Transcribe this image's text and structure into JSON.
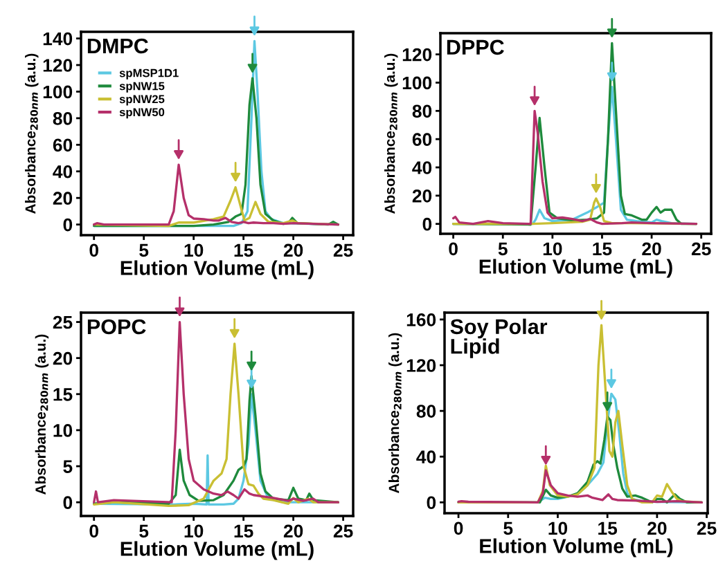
{
  "chart_data": [
    {
      "type": "line",
      "title": "DMPC",
      "xlabel": "Elution Volume (mL)",
      "ylabel": "Absorbance$_{280nm}$ (a.u.)",
      "xlim": [
        -1.3,
        26
      ],
      "ylim": [
        -8,
        145
      ],
      "xticks": [
        0,
        5,
        10,
        15,
        20,
        25
      ],
      "yticks": [
        0,
        20,
        40,
        60,
        80,
        100,
        120,
        140
      ],
      "grid": false,
      "legend": "top left",
      "marker": "none",
      "line_style": "solid",
      "series": [
        {
          "name": "spMSP1D1",
          "color": "#5cc8e2",
          "x": [
            0,
            8,
            14,
            14.8,
            15.4,
            15.8,
            16.1,
            16.4,
            16.8,
            17.2,
            17.8,
            19,
            24.5
          ],
          "values": [
            -1,
            -1,
            -1,
            1,
            10,
            80,
            138,
            100,
            40,
            10,
            4,
            1,
            0
          ]
        },
        {
          "name": "spNW15",
          "color": "#1e8a3c",
          "x": [
            0,
            7.5,
            10,
            12,
            13.5,
            14.2,
            14.8,
            15.2,
            15.6,
            15.9,
            16.3,
            16.7,
            17.2,
            18,
            19,
            19.6,
            19.9,
            20.4,
            23.5,
            24,
            24.5
          ],
          "values": [
            -1,
            -1,
            -1,
            0,
            2,
            6,
            8,
            30,
            90,
            110,
            80,
            30,
            8,
            3,
            0.5,
            2,
            5,
            1,
            0,
            2,
            0
          ]
        },
        {
          "name": "spNW25",
          "color": "#c9bf33",
          "x": [
            0,
            7.5,
            8.5,
            10,
            12,
            13,
            13.7,
            14.2,
            14.7,
            15.1,
            15.6,
            16.2,
            16.7,
            17.5,
            19,
            19.9,
            20.5,
            24.5
          ],
          "values": [
            0,
            -1,
            1.5,
            1.5,
            4,
            6,
            18,
            28,
            14,
            3,
            5,
            17,
            8,
            2,
            1,
            3,
            1,
            0
          ]
        },
        {
          "name": "spNW50",
          "color": "#b5306a",
          "x": [
            0,
            0.3,
            1,
            7.5,
            8,
            8.5,
            9,
            9.5,
            10,
            11,
            12,
            12.5,
            13.2,
            13.8,
            14.5,
            15,
            15.5,
            16,
            17,
            18,
            19,
            20,
            22,
            24.5
          ],
          "values": [
            0,
            1,
            0,
            0,
            10,
            45,
            20,
            7,
            4.5,
            4,
            3,
            3,
            5,
            2,
            1,
            2,
            1,
            1.5,
            1,
            1,
            0.5,
            1,
            0.5,
            0
          ]
        }
      ]
    },
    {
      "type": "line",
      "title": "DPPC",
      "xlabel": "Elution Volume (mL)",
      "ylabel": "Absorbance$_{280nm}$ (a.u.)",
      "xlim": [
        -1.3,
        26
      ],
      "ylim": [
        -7,
        135
      ],
      "xticks": [
        0,
        5,
        10,
        15,
        20,
        25
      ],
      "yticks": [
        0,
        20,
        40,
        60,
        80,
        100,
        120
      ],
      "grid": false,
      "marker": "none",
      "line_style": "solid",
      "series": [
        {
          "color": "#5cc8e2",
          "x": [
            0,
            8,
            8.3,
            8.7,
            9.2,
            10,
            12,
            13.5,
            14.5,
            15.2,
            15.6,
            16,
            16.4,
            16.9,
            17.5,
            18.5,
            20,
            20.5,
            21,
            22,
            24.5
          ],
          "values": [
            0,
            0,
            3,
            10,
            4,
            2,
            3,
            8,
            12,
            15,
            60,
            97,
            60,
            10,
            3,
            2,
            1,
            3,
            2,
            0.5,
            0
          ]
        },
        {
          "color": "#1e8a3c",
          "x": [
            0,
            7.8,
            8.3,
            8.7,
            9.2,
            9.7,
            10.5,
            12,
            13.5,
            14.5,
            15.2,
            15.6,
            16,
            16.4,
            16.9,
            17.3,
            18,
            19,
            19.5,
            20,
            20.5,
            20.9,
            21.3,
            22,
            22.5,
            23,
            24.5
          ],
          "values": [
            0,
            -0.5,
            40,
            75,
            40,
            8,
            4,
            2.5,
            3,
            4,
            8,
            60,
            128,
            80,
            20,
            7,
            6,
            3,
            3,
            8,
            12,
            8,
            10,
            10,
            3,
            0,
            0
          ]
        },
        {
          "color": "#c9bf33",
          "x": [
            0,
            8,
            10,
            13,
            13.8,
            14.2,
            14.4,
            14.8,
            15.2,
            16,
            18,
            24.5
          ],
          "values": [
            0,
            0,
            0.5,
            1.5,
            3,
            15,
            18,
            12,
            2,
            0.5,
            0.5,
            0
          ]
        },
        {
          "color": "#b5306a",
          "x": [
            0,
            0.2,
            0.6,
            2,
            3.5,
            5,
            7.8,
            8,
            8.2,
            8.5,
            9,
            9.5,
            10,
            11,
            12,
            13,
            13.8,
            14.5,
            15,
            17,
            18,
            20,
            24.5
          ],
          "values": [
            4,
            5,
            1,
            0,
            2,
            0.5,
            0,
            40,
            80,
            65,
            30,
            8,
            4,
            4.5,
            3.5,
            2,
            3.5,
            1,
            0,
            0.5,
            1,
            0.5,
            0
          ]
        }
      ]
    },
    {
      "type": "line",
      "title": "POPC",
      "xlabel": "Elution Volume (mL)",
      "ylabel": "Absorbance$_{280nm}$ (a.u.)",
      "xlim": [
        -1.3,
        26
      ],
      "ylim": [
        -1.9,
        26.3
      ],
      "xticks": [
        0,
        5,
        10,
        15,
        20,
        25
      ],
      "yticks": [
        0,
        5,
        10,
        15,
        20,
        25
      ],
      "grid": false,
      "marker": "none",
      "line_style": "solid",
      "series": [
        {
          "color": "#5cc8e2",
          "x": [
            0,
            8,
            10,
            11.3,
            11.4,
            11.5,
            13,
            14,
            14.5,
            15,
            15.5,
            15.8,
            16.2,
            16.7,
            17.5,
            19,
            24.5
          ],
          "values": [
            -0.2,
            -0.3,
            -0.2,
            -0.3,
            6.5,
            -0.3,
            -0.3,
            -0.2,
            0.5,
            3,
            8,
            15,
            10,
            3,
            0.5,
            0,
            0
          ]
        },
        {
          "color": "#1e8a3c",
          "x": [
            0,
            2,
            7.5,
            8.2,
            8.6,
            9,
            9.6,
            10.5,
            12,
            13,
            14,
            14.5,
            15,
            15.3,
            15.6,
            15.8,
            16.2,
            16.7,
            17.2,
            18,
            19.5,
            20,
            20.5,
            21.3,
            21.6,
            22,
            24.5
          ],
          "values": [
            -0.2,
            0,
            -0.2,
            1,
            7.3,
            3,
            1,
            0.2,
            0.3,
            1,
            3,
            4.5,
            5,
            6,
            14,
            17.5,
            12,
            4,
            1.5,
            0.5,
            0.3,
            2,
            0.5,
            0.3,
            1.2,
            0.3,
            0
          ]
        },
        {
          "color": "#c9bf33",
          "x": [
            0,
            2,
            7.5,
            9.5,
            11,
            12,
            12.8,
            13.3,
            13.7,
            14.1,
            14.5,
            15,
            15.5,
            16,
            16.5,
            17,
            18,
            19.5,
            20,
            20.5,
            21.5,
            22,
            24.5
          ],
          "values": [
            -0.3,
            0,
            -0.5,
            -0.4,
            0.5,
            3,
            4,
            6,
            15,
            22,
            15,
            5,
            2.5,
            2.3,
            1.2,
            0.5,
            0.3,
            -0.2,
            0.6,
            0,
            0.5,
            0,
            0
          ]
        },
        {
          "color": "#b5306a",
          "x": [
            0,
            0.2,
            0.4,
            2,
            7.8,
            8.2,
            8.6,
            9,
            9.5,
            10,
            11,
            12,
            12.8,
            13.4,
            14,
            14.5,
            15.1,
            15.6,
            16,
            17,
            18,
            19.5,
            20,
            21,
            22,
            22.5,
            24.5
          ],
          "values": [
            0,
            1.5,
            0,
            0.3,
            0,
            10,
            25,
            15,
            6,
            3,
            1.8,
            1.2,
            1,
            1.5,
            1,
            0.5,
            1.8,
            1.2,
            1,
            0.8,
            0.6,
            0.2,
            0.5,
            0.2,
            0.5,
            0,
            0
          ]
        }
      ]
    },
    {
      "type": "line",
      "title": "Soy Polar\nLipid",
      "xlabel": "Elution Volume (mL)",
      "ylabel": "Absorbance$_{280nm}$ (a.u.)",
      "xlim": [
        -1.4,
        25.1
      ],
      "ylim": [
        -9.5,
        166
      ],
      "xticks": [
        0,
        5,
        10,
        15,
        20,
        25
      ],
      "yticks": [
        0,
        40,
        80,
        120,
        160
      ],
      "grid": false,
      "marker": "none",
      "line_style": "solid",
      "series": [
        {
          "color": "#5cc8e2",
          "x": [
            0,
            8,
            8.7,
            9.3,
            10,
            11,
            12,
            13,
            14,
            14.6,
            15,
            15.4,
            15.8,
            16.2,
            16.6,
            17,
            17.5,
            18.5,
            20,
            24.5
          ],
          "values": [
            0,
            0,
            4,
            3,
            3,
            5,
            7,
            15,
            25,
            35,
            70,
            95,
            90,
            60,
            25,
            8,
            3,
            1,
            0.5,
            0
          ]
        },
        {
          "color": "#1e8a3c",
          "x": [
            0,
            8.2,
            8.8,
            9.3,
            10,
            11,
            12,
            13,
            13.6,
            14,
            14.3,
            14.7,
            15,
            15.3,
            15.6,
            16,
            16.5,
            17,
            17.8,
            18.5,
            19.5,
            20,
            20.5,
            21,
            21.8,
            22.3,
            23,
            24.5
          ],
          "values": [
            0,
            0,
            11,
            6,
            4,
            5,
            8,
            18,
            33,
            36,
            34,
            55,
            75,
            72,
            50,
            30,
            12,
            5,
            6,
            4,
            0,
            3,
            3,
            0,
            7,
            3,
            0,
            0
          ]
        },
        {
          "color": "#c9bf33",
          "x": [
            0,
            8,
            8.5,
            8.8,
            9.2,
            10,
            11,
            12,
            13,
            13.7,
            14.1,
            14.4,
            14.8,
            15.2,
            15.5,
            15.8,
            16.1,
            16.5,
            17,
            17.5,
            18.5,
            19.5,
            20,
            20.5,
            21,
            21.5,
            22,
            22.5,
            24.5
          ],
          "values": [
            0,
            0,
            10,
            32,
            15,
            6,
            5,
            7,
            15,
            30,
            120,
            155,
            100,
            45,
            40,
            70,
            80,
            50,
            15,
            3,
            0,
            0,
            6,
            5,
            16,
            9,
            3,
            1,
            0
          ]
        },
        {
          "color": "#b5306a",
          "x": [
            0,
            0.3,
            1,
            8,
            8.5,
            8.8,
            9.3,
            10,
            11,
            12,
            13,
            13.5,
            14.5,
            15.1,
            15.5,
            16,
            18,
            20,
            22,
            24.5
          ],
          "values": [
            0.5,
            1,
            0.5,
            0,
            8,
            28,
            15,
            8,
            6,
            5,
            6,
            4,
            2,
            7,
            3,
            2,
            1.5,
            0.5,
            1,
            0
          ]
        }
      ]
    }
  ]
}
